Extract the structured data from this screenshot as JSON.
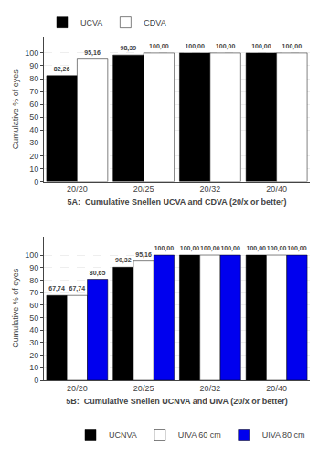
{
  "chart_data": [
    {
      "type": "bar",
      "categories": [
        "20/20",
        "20/25",
        "20/32",
        "20/40"
      ],
      "series": [
        {
          "name": "UCVA",
          "color": "#000000",
          "values": [
            82.26,
            98.39,
            100.0,
            100.0
          ],
          "value_labels": [
            "82,26",
            "98,39",
            "100,00",
            "100,00"
          ]
        },
        {
          "name": "CDVA",
          "color": "#ffffff",
          "values": [
            95.16,
            100.0,
            100.0,
            100.0
          ],
          "value_labels": [
            "95,16",
            "100,00",
            "100,00",
            "100,00"
          ]
        }
      ],
      "xlabel": "5A:  Cumulative Snellen UCVA and CDVA (20/x or better)",
      "ylabel": "Cumulative % of eyes",
      "ylim": [
        0,
        112
      ],
      "yticks": [
        0,
        10,
        20,
        30,
        40,
        50,
        60,
        70,
        80,
        90,
        100
      ],
      "grid": true,
      "legend": "upper left",
      "data_labels": true
    },
    {
      "type": "bar",
      "categories": [
        "20/20",
        "20/25",
        "20/32",
        "20/40"
      ],
      "series": [
        {
          "name": "UCNVA",
          "color": "#000000",
          "values": [
            67.74,
            90.32,
            100.0,
            100.0
          ],
          "value_labels": [
            "67,74",
            "90,32",
            "100,00",
            "100,00"
          ]
        },
        {
          "name": "UIVA 60 cm",
          "color": "#ffffff",
          "values": [
            67.74,
            95.16,
            100.0,
            100.0
          ],
          "value_labels": [
            "67,74",
            "95,16",
            "100,00",
            "100,00"
          ]
        },
        {
          "name": "UIVA 80 cm",
          "color": "#0000ee",
          "values": [
            80.65,
            100.0,
            100.0,
            100.0
          ],
          "value_labels": [
            "80,65",
            "100,00",
            "100,00",
            "100,00"
          ]
        }
      ],
      "xlabel": "5B:  Cumulative Snellen UCNVA and UIVA (20/x or better)",
      "ylabel": "Cumulative % of eyes",
      "ylim": [
        0,
        115
      ],
      "yticks": [
        0,
        10,
        20,
        30,
        40,
        50,
        60,
        70,
        80,
        90,
        100
      ],
      "grid": true,
      "legend": "lower right",
      "data_labels": true
    }
  ]
}
